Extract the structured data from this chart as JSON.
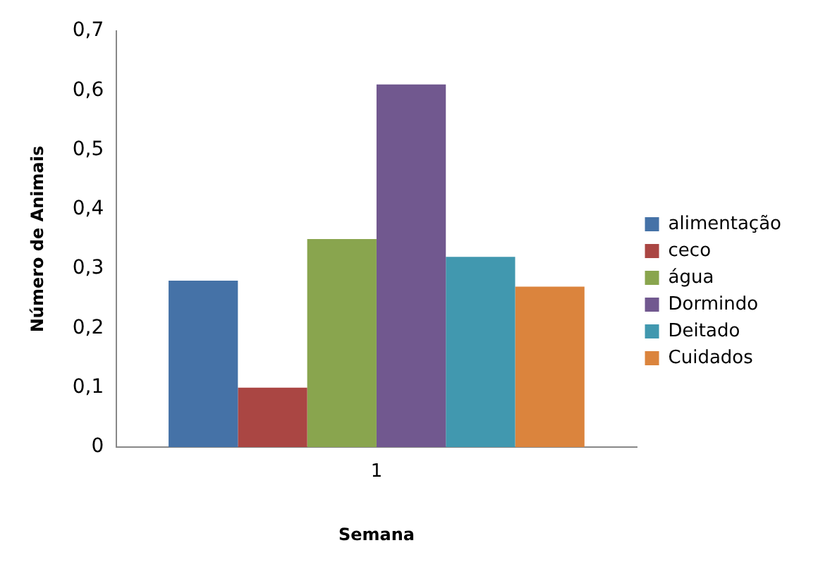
{
  "chart_data": {
    "type": "bar",
    "xlabel": "Semana",
    "ylabel": "Número de Animais",
    "categories": [
      "1"
    ],
    "series": [
      {
        "name": "alimentação",
        "color": "#4572a7",
        "values": [
          0.28
        ]
      },
      {
        "name": "ceco",
        "color": "#aa4643",
        "values": [
          0.1
        ]
      },
      {
        "name": "água",
        "color": "#89a54e",
        "values": [
          0.35
        ]
      },
      {
        "name": "Dormindo",
        "color": "#71588f",
        "values": [
          0.61
        ]
      },
      {
        "name": "Deitado",
        "color": "#4198af",
        "values": [
          0.32
        ]
      },
      {
        "name": "Cuidados",
        "color": "#db843d",
        "values": [
          0.27
        ]
      }
    ],
    "ylim": [
      0,
      0.7
    ],
    "yticks": [
      0,
      {
        "value": 0.1,
        "label": "0,1"
      },
      {
        "value": 0.2,
        "label": "0,2"
      },
      {
        "value": 0.3,
        "label": "0,3"
      },
      {
        "value": 0.4,
        "label": "0,4"
      },
      {
        "value": 0.5,
        "label": "0,5"
      },
      {
        "value": 0.6,
        "label": "0,6"
      },
      {
        "value": 0.7,
        "label": "0,7"
      }
    ],
    "grid": false,
    "legend": "right"
  }
}
